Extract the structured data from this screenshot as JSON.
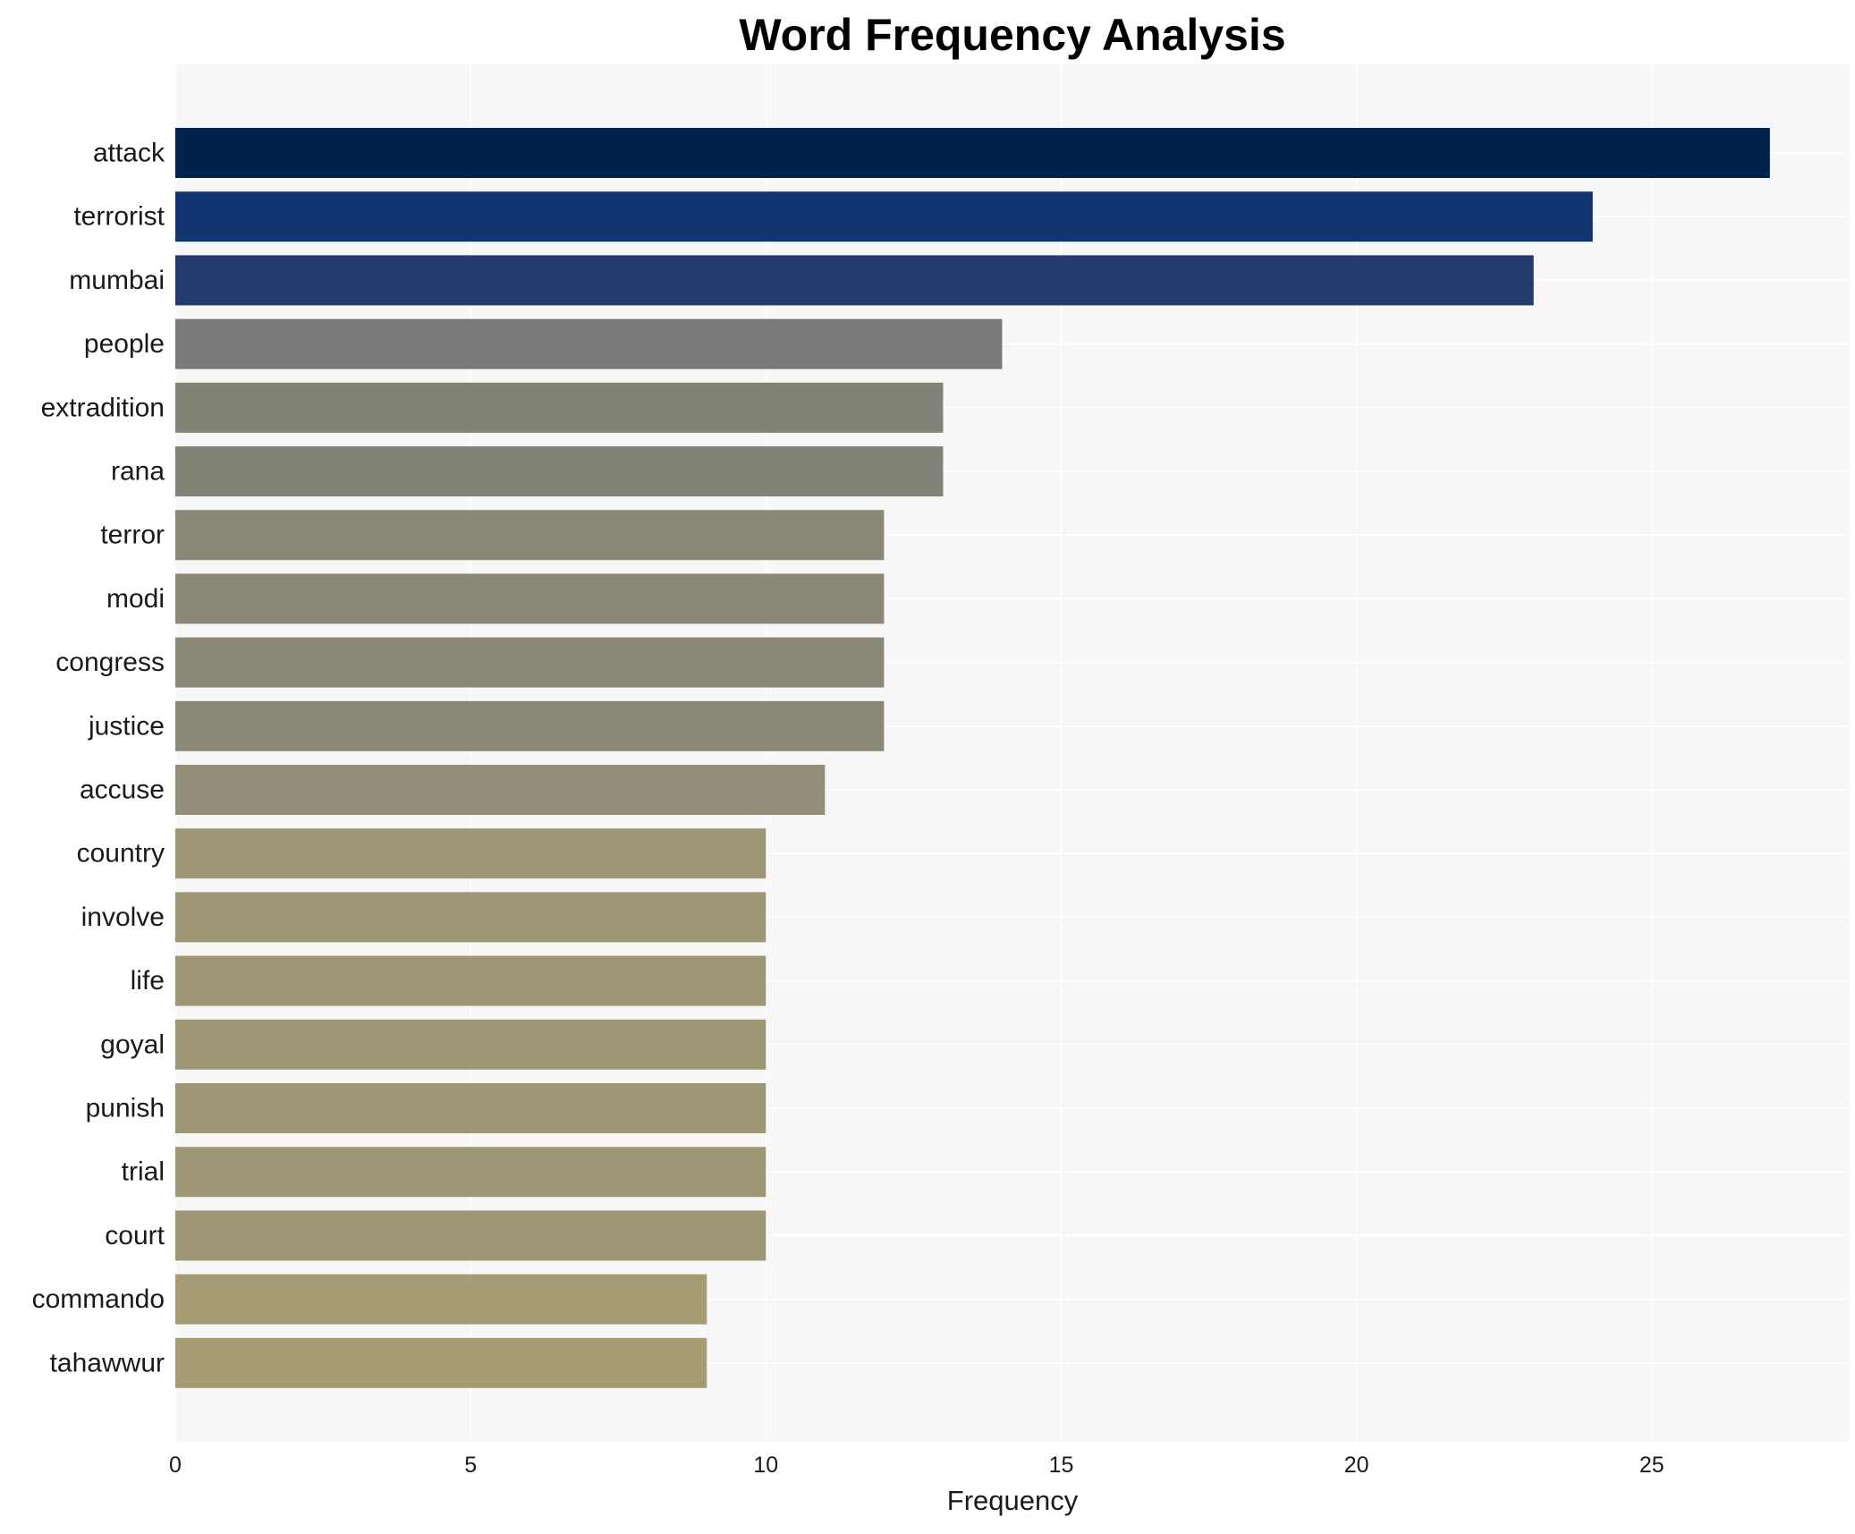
{
  "chart_data": {
    "type": "bar",
    "orientation": "horizontal",
    "title": "Word Frequency Analysis",
    "xlabel": "Frequency",
    "ylabel": "",
    "xlim": [
      0,
      28.35
    ],
    "x_ticks": [
      0,
      5,
      10,
      15,
      20,
      25
    ],
    "grid": true,
    "categories": [
      "attack",
      "terrorist",
      "mumbai",
      "people",
      "extradition",
      "rana",
      "terror",
      "modi",
      "congress",
      "justice",
      "accuse",
      "country",
      "involve",
      "life",
      "goyal",
      "punish",
      "trial",
      "court",
      "commando",
      "tahawwur"
    ],
    "values": [
      27,
      24,
      23,
      14,
      13,
      13,
      12,
      12,
      12,
      12,
      11,
      10,
      10,
      10,
      10,
      10,
      10,
      10,
      9,
      9
    ],
    "colors": [
      "#00224e",
      "#123570",
      "#233c6d",
      "#7a7a7a",
      "#838277",
      "#838277",
      "#8b8878",
      "#8b8878",
      "#8b8878",
      "#8b8878",
      "#928e79",
      "#9d9776",
      "#9d9776",
      "#9d9776",
      "#9d9776",
      "#9d9776",
      "#9d9776",
      "#9d9776",
      "#a59c74",
      "#a59c74"
    ],
    "plot_background": "#f7f7f7",
    "grid_color": "#ffffff"
  }
}
